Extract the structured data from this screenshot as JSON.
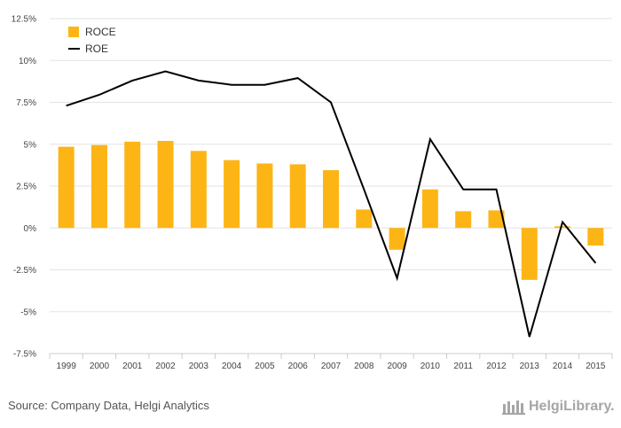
{
  "chart_data": {
    "type": "bar",
    "categories": [
      "1999",
      "2000",
      "2001",
      "2002",
      "2003",
      "2004",
      "2005",
      "2006",
      "2007",
      "2008",
      "2009",
      "2010",
      "2011",
      "2012",
      "2013",
      "2014",
      "2015"
    ],
    "series": [
      {
        "name": "ROCE",
        "type": "bar",
        "color": "#FDB515",
        "values": [
          4.85,
          4.95,
          5.15,
          5.2,
          4.6,
          4.05,
          3.85,
          3.8,
          3.45,
          1.1,
          -1.3,
          2.3,
          1.0,
          1.05,
          -3.1,
          0.1,
          -1.05
        ]
      },
      {
        "name": "ROE",
        "type": "line",
        "color": "#000000",
        "values": [
          7.3,
          7.95,
          8.8,
          9.35,
          8.8,
          8.55,
          8.55,
          8.95,
          7.5,
          2.3,
          -3.0,
          5.3,
          2.3,
          2.3,
          -6.5,
          0.35,
          -2.1
        ]
      }
    ],
    "ylim": [
      -7.5,
      12.5
    ],
    "yticks": [
      "12.5%",
      "10%",
      "7.5%",
      "5%",
      "2.5%",
      "0%",
      "-2.5%",
      "-5%",
      "-7.5%"
    ],
    "xlabel": "",
    "ylabel": "",
    "grid": true,
    "legend_position": "top-left"
  },
  "legend": {
    "roce_label": "ROCE",
    "roe_label": "ROE"
  },
  "footer": {
    "source": "Source: Company Data, Helgi Analytics",
    "brand": "HelgiLibrary."
  }
}
